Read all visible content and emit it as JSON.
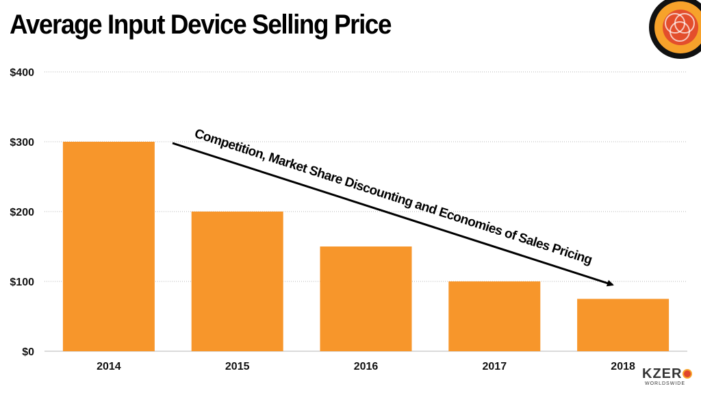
{
  "header": {
    "title": "Average Input Device Selling Price"
  },
  "chart_data": {
    "type": "bar",
    "categories": [
      "2014",
      "2015",
      "2016",
      "2017",
      "2018"
    ],
    "values": [
      300,
      200,
      150,
      100,
      75
    ],
    "ylim": [
      0,
      400
    ],
    "yticks": [
      0,
      100,
      200,
      300,
      400
    ],
    "ytick_labels": [
      "$0",
      "$100",
      "$200",
      "$300",
      "$400"
    ],
    "grid": true,
    "bar_color": "#f7962b",
    "annotation": "Competition, Market Share Discounting and Economies of Sales Pricing"
  },
  "brand": {
    "logo_text": "KZER",
    "logo_subtext": "WORLDSWIDE",
    "colors": {
      "orange": "#f7962b",
      "red": "#e0452c"
    }
  }
}
